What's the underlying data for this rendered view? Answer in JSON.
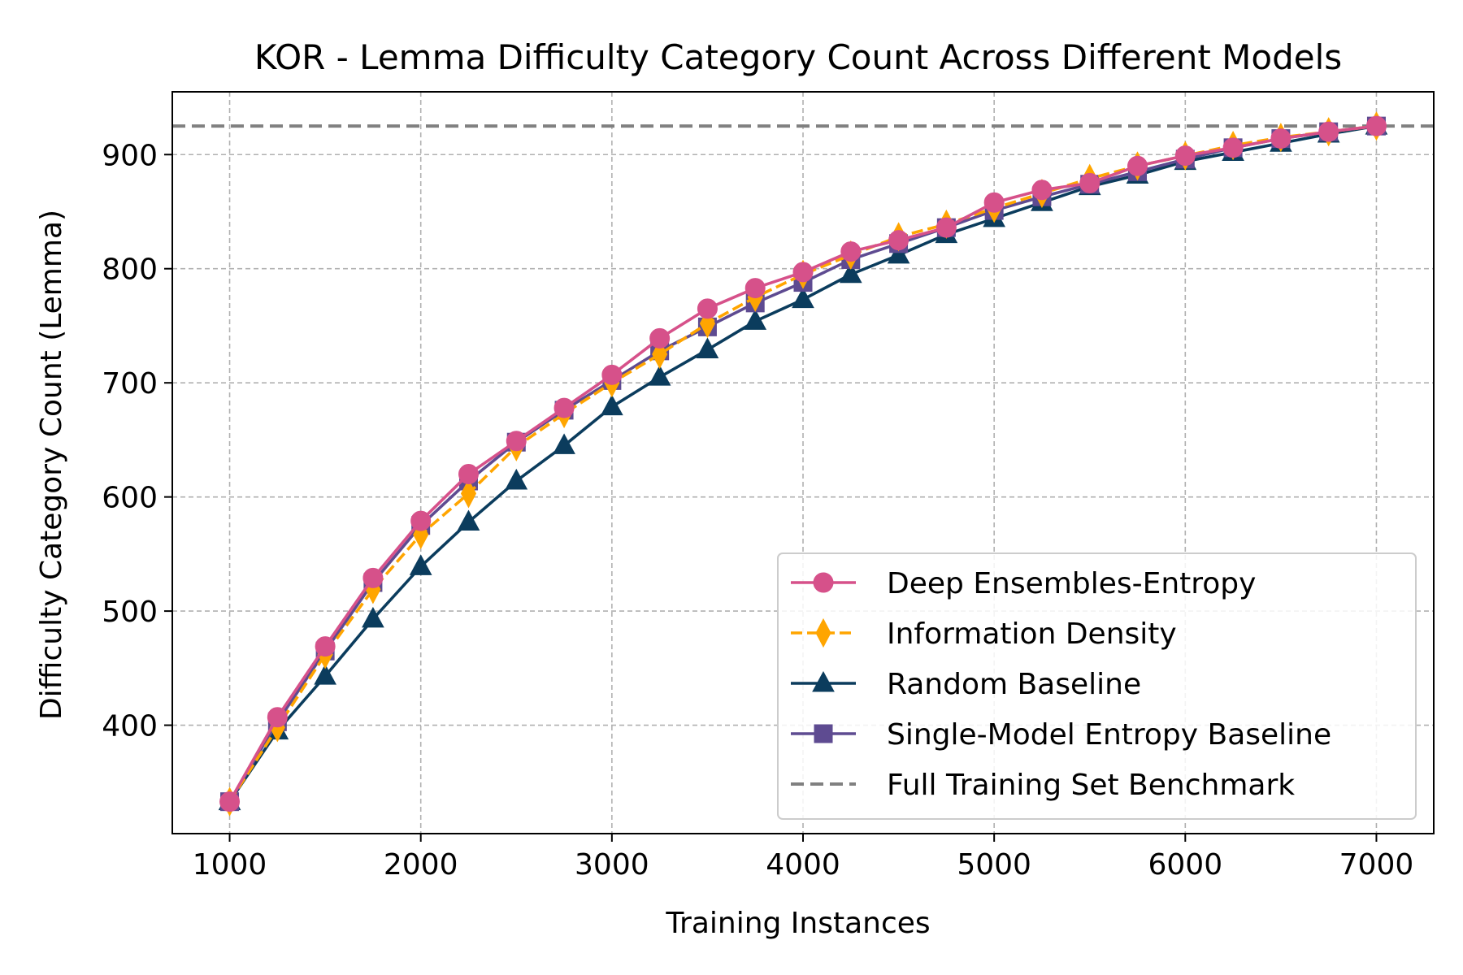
{
  "chart_data": {
    "type": "line",
    "title": "KOR - Lemma Difficulty Category Count Across Different Models",
    "xlabel": "Training Instances",
    "ylabel": "Difficulty Category Count (Lemma)",
    "xlim": [
      700,
      7300
    ],
    "ylim": [
      305,
      955
    ],
    "xticks": [
      1000,
      2000,
      3000,
      4000,
      5000,
      6000,
      7000
    ],
    "yticks": [
      400,
      500,
      600,
      700,
      800,
      900
    ],
    "grid": true,
    "legend_position": "lower-right",
    "x": [
      1000,
      1250,
      1500,
      1750,
      2000,
      2250,
      2500,
      2750,
      3000,
      3250,
      3500,
      3750,
      4000,
      4250,
      4500,
      4750,
      5000,
      5250,
      5500,
      5750,
      6000,
      6250,
      6500,
      6750,
      7000
    ],
    "series": [
      {
        "name": "Random Baseline",
        "color": "#0b3c5d",
        "marker": "triangle",
        "dashed": false,
        "values": [
          333,
          395,
          443,
          493,
          539,
          578,
          614,
          645,
          679,
          705,
          729,
          754,
          773,
          795,
          812,
          830,
          844,
          858,
          872,
          882,
          894,
          902,
          910,
          918,
          925
        ]
      },
      {
        "name": "Single-Model Entropy Baseline",
        "color": "#5e4b91",
        "marker": "square",
        "dashed": false,
        "values": [
          333,
          403,
          465,
          525,
          575,
          614,
          648,
          676,
          702,
          728,
          749,
          770,
          788,
          808,
          822,
          836,
          851,
          863,
          874,
          885,
          896,
          906,
          914,
          920,
          925
        ]
      },
      {
        "name": "Information Density",
        "color": "#ffa500",
        "marker": "diamond",
        "dashed": true,
        "values": [
          333,
          398,
          462,
          519,
          567,
          603,
          644,
          673,
          700,
          725,
          752,
          775,
          795,
          812,
          828,
          839,
          853,
          866,
          879,
          890,
          899,
          908,
          915,
          920,
          925
        ]
      },
      {
        "name": "Deep Ensembles-Entropy",
        "color": "#d6518a",
        "marker": "circle",
        "dashed": false,
        "values": [
          333,
          407,
          469,
          529,
          579,
          620,
          649,
          678,
          707,
          739,
          765,
          783,
          797,
          815,
          825,
          836,
          858,
          869,
          875,
          890,
          899,
          906,
          914,
          920,
          925
        ]
      }
    ],
    "benchmark": {
      "name": "Full Training Set Benchmark",
      "value": 925,
      "color": "#808080"
    },
    "legend_order": [
      "Deep Ensembles-Entropy",
      "Information Density",
      "Random Baseline",
      "Single-Model Entropy Baseline",
      "Full Training Set Benchmark"
    ]
  }
}
